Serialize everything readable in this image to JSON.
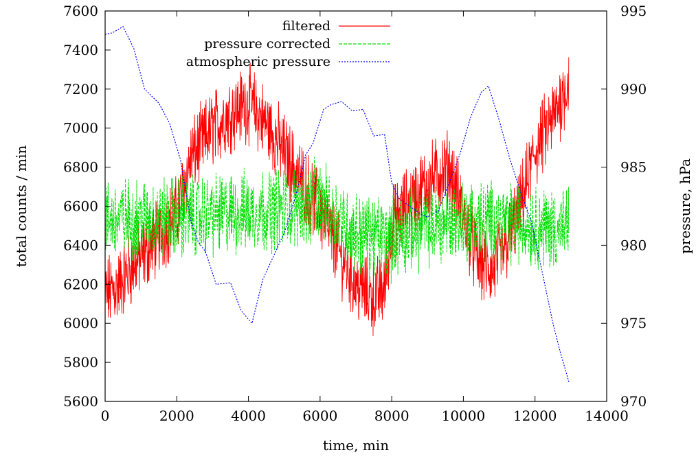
{
  "chart_data": {
    "type": "line",
    "xlabel": "time, min",
    "ylabel_left": "total counts / min",
    "ylabel_right": "pressure, hPa",
    "xlim": [
      0,
      14000
    ],
    "ylim_left": [
      5600,
      7600
    ],
    "ylim_right": [
      970,
      995
    ],
    "x_ticks": [
      0,
      2000,
      4000,
      6000,
      8000,
      10000,
      12000,
      14000
    ],
    "y_left_ticks": [
      5600,
      5800,
      6000,
      6200,
      6400,
      6600,
      6800,
      7000,
      7200,
      7400,
      7600
    ],
    "y_right_ticks": [
      970,
      975,
      980,
      985,
      990,
      995
    ],
    "grid": false,
    "legend_position": "top-center",
    "series": [
      {
        "name": "filtered",
        "axis": "left",
        "color": "#ff0000",
        "style": "solid",
        "noise_amplitude": 160,
        "x": [
          0,
          300,
          800,
          1400,
          2000,
          2400,
          3000,
          3500,
          4000,
          4500,
          5000,
          5500,
          6000,
          6500,
          7000,
          7500,
          7800,
          8000,
          8400,
          8800,
          9200,
          9600,
          10000,
          10400,
          10800,
          11200,
          11600,
          12000,
          12500,
          12950
        ],
        "values": [
          6150,
          6180,
          6300,
          6420,
          6560,
          6850,
          7000,
          7080,
          7130,
          7020,
          6880,
          6720,
          6580,
          6380,
          6200,
          6130,
          6180,
          6500,
          6600,
          6680,
          6750,
          6800,
          6550,
          6320,
          6260,
          6400,
          6600,
          6880,
          7050,
          7250
        ]
      },
      {
        "name": "pressure corrected",
        "axis": "left",
        "color": "#00e000",
        "style": "dashed",
        "noise_amplitude": 170,
        "x": [
          0,
          2000,
          4000,
          6000,
          7000,
          8000,
          9000,
          10000,
          11000,
          12000,
          12950
        ],
        "values": [
          6530,
          6540,
          6570,
          6620,
          6460,
          6440,
          6500,
          6530,
          6520,
          6500,
          6480
        ]
      },
      {
        "name": "atmospheric pressure",
        "axis": "right",
        "color": "#0000ff",
        "style": "dotted",
        "noise_amplitude": 0,
        "x": [
          0,
          200,
          500,
          800,
          1100,
          1500,
          1800,
          2100,
          2400,
          2600,
          2800,
          3100,
          3500,
          3800,
          4100,
          4400,
          4700,
          5000,
          5300,
          5600,
          5800,
          6100,
          6300,
          6600,
          6900,
          7200,
          7500,
          7800,
          8000,
          8200,
          8500,
          8800,
          9000,
          9300,
          9600,
          9900,
          10200,
          10500,
          10700,
          11000,
          11300,
          11600,
          11900,
          12200,
          12500,
          12700,
          12950
        ],
        "values": [
          993.5,
          993.6,
          994.0,
          992.6,
          990.0,
          989.1,
          987.8,
          985.5,
          981.5,
          980.2,
          979.6,
          977.5,
          977.6,
          975.8,
          975.0,
          977.8,
          979.3,
          980.8,
          983.0,
          985.8,
          986.5,
          988.7,
          989.0,
          989.2,
          988.6,
          988.7,
          987.0,
          987.1,
          984.0,
          983.0,
          982.5,
          982.0,
          981.8,
          982.2,
          984.0,
          985.8,
          988.2,
          989.8,
          990.2,
          988.0,
          985.5,
          983.4,
          981.5,
          978.3,
          975.0,
          973.2,
          971.2
        ]
      }
    ]
  }
}
